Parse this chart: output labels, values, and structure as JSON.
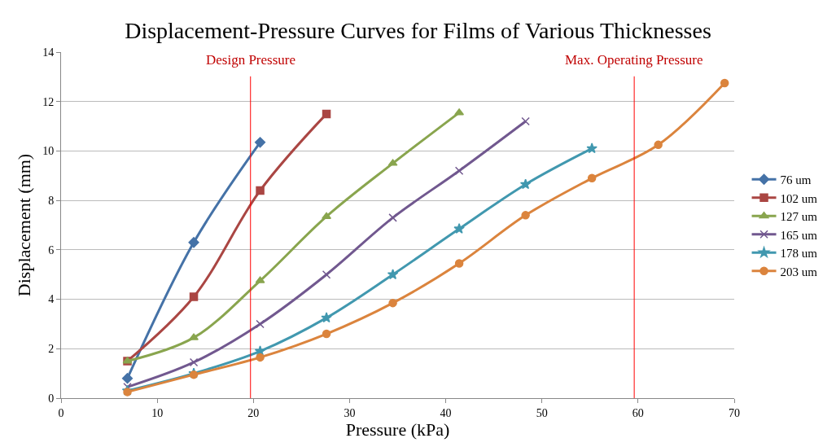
{
  "chart_data": {
    "type": "line",
    "title": "Displacement-Pressure Curves for Films of Various Thicknesses",
    "xlabel": "Pressure (kPa)",
    "ylabel": "Displacement (mm)",
    "xlim": [
      0,
      70
    ],
    "xticks": [
      0,
      10,
      20,
      30,
      40,
      50,
      60,
      70
    ],
    "ylim": [
      0,
      14
    ],
    "yticks": [
      0,
      2,
      4,
      6,
      8,
      10,
      12,
      14
    ],
    "grid": "y",
    "legend": "right",
    "x": [
      6.9,
      13.8,
      20.7,
      27.6,
      34.5,
      41.4,
      48.3,
      55.2,
      62.1,
      69
    ],
    "series": [
      {
        "name": "76 um",
        "color": "#4572a7",
        "marker": "diamond",
        "values": [
          0.8,
          6.3,
          10.35,
          null,
          null,
          null,
          null,
          null,
          null,
          null
        ]
      },
      {
        "name": "102 um",
        "color": "#aa4643",
        "marker": "square",
        "values": [
          1.5,
          4.1,
          8.4,
          11.5,
          null,
          null,
          null,
          null,
          null,
          null
        ]
      },
      {
        "name": "127 um",
        "color": "#89a54e",
        "marker": "triangle",
        "values": [
          1.5,
          2.45,
          4.75,
          7.35,
          9.5,
          11.55,
          null,
          null,
          null,
          null
        ]
      },
      {
        "name": "165 um",
        "color": "#71588f",
        "marker": "cross",
        "values": [
          0.45,
          1.45,
          3.0,
          5.0,
          7.3,
          9.2,
          11.2,
          null,
          null,
          null
        ]
      },
      {
        "name": "178 um",
        "color": "#4198af",
        "marker": "star",
        "values": [
          0.3,
          1.0,
          1.9,
          3.25,
          5.0,
          6.85,
          8.65,
          10.1,
          null,
          null
        ]
      },
      {
        "name": "203 um",
        "color": "#db843d",
        "marker": "circle",
        "values": [
          0.25,
          0.95,
          1.65,
          2.6,
          3.85,
          5.45,
          7.4,
          8.9,
          10.25,
          12.75
        ]
      }
    ],
    "ref_lines": [
      {
        "axis": "x",
        "value": 19.7,
        "label": "Design Pressure",
        "color": "#ff0000"
      },
      {
        "axis": "x",
        "value": 59.6,
        "label": "Max. Operating Pressure",
        "color": "#ff0000"
      }
    ]
  }
}
